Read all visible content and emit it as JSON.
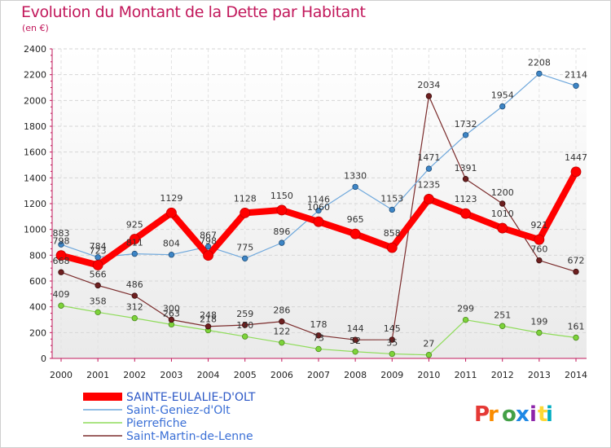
{
  "title": "Evolution du Montant de la Dette par Habitant",
  "subtitle": "(en €)",
  "logo": {
    "text": "Proxiti",
    "colors": [
      "#e53935",
      "#fb8c00",
      "#43a047",
      "#1e88e5",
      "#8e24aa",
      "#fdd835",
      "#00acc1"
    ]
  },
  "chart_data": {
    "type": "line",
    "title": "Evolution du Montant de la Dette par Habitant",
    "subtitle": "(en €)",
    "xlabel": "",
    "ylabel": "",
    "x": [
      2000,
      2001,
      2002,
      2003,
      2004,
      2005,
      2006,
      2007,
      2008,
      2009,
      2010,
      2011,
      2012,
      2013,
      2014
    ],
    "ylim": [
      0,
      2400
    ],
    "yticks": [
      0,
      200,
      400,
      600,
      800,
      1000,
      1200,
      1400,
      1600,
      1800,
      2000,
      2200,
      2400
    ],
    "grid": true,
    "legend_position": "bottom-left",
    "series": [
      {
        "name": "SAINTE-EULALIE-D'OLT",
        "color": "#ff0000",
        "values": [
          798,
          723,
          925,
          1129,
          798,
          1128,
          1150,
          1060,
          965,
          858,
          1235,
          1123,
          1010,
          921,
          1447
        ],
        "labels": [
          "798",
          "723",
          "925",
          "1129",
          "798",
          "1128",
          "1150",
          "1060",
          "965",
          "858",
          "1235",
          "1123",
          "1010",
          "921",
          "1447"
        ]
      },
      {
        "name": "Saint-Geniez-d'Olt",
        "color": "#6fa8dc",
        "values": [
          883,
          784,
          811,
          804,
          867,
          775,
          896,
          1146,
          1330,
          1153,
          1471,
          1732,
          1954,
          2208,
          2114
        ],
        "labels": [
          "883",
          "784",
          "811",
          "804",
          "867",
          "775",
          "896",
          "1146",
          "1330",
          "1153",
          "1471",
          "1732",
          "1954",
          "2208",
          "2114"
        ]
      },
      {
        "name": "Pierrefiche",
        "color": "#8fdc5a",
        "values": [
          409,
          358,
          312,
          263,
          218,
          170,
          122,
          73,
          52,
          35,
          27,
          299,
          251,
          199,
          161
        ],
        "labels": [
          "409",
          "358",
          "312",
          "263",
          "218",
          "170",
          "122",
          "73",
          "52",
          "35",
          "27",
          "299",
          "251",
          "199",
          "161"
        ]
      },
      {
        "name": "Saint-Martin-de-Lenne",
        "color": "#7b2c2c",
        "values": [
          668,
          566,
          486,
          300,
          248,
          259,
          286,
          178,
          144,
          145,
          2034,
          1391,
          1200,
          760,
          672
        ],
        "labels": [
          "668",
          "566",
          "486",
          "300",
          "248",
          "259",
          "286",
          "178",
          "144",
          "145",
          "2034",
          "1391",
          "1200",
          "760",
          "672"
        ]
      }
    ]
  }
}
